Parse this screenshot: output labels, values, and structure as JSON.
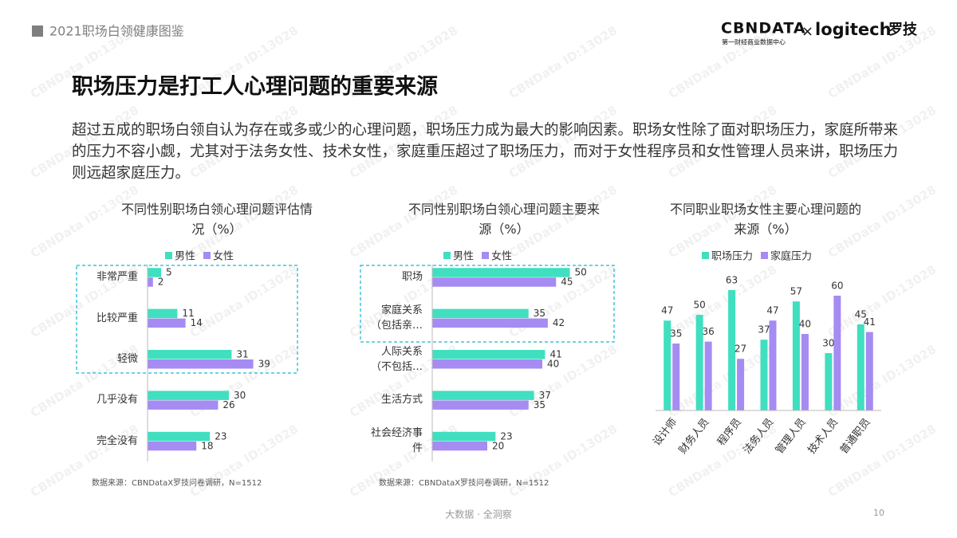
{
  "header": {
    "title": "2021职场白领健康图鉴",
    "logo": "CBNDATA",
    "logo_subtitle": "第一财经商业数据中心",
    "times": "×",
    "partner": "logitech",
    "partner_cn": "罗技"
  },
  "watermark": "CBNData ID:13028",
  "title": "职场压力是打工人心理问题的重要来源",
  "paragraph": "超过五成的职场白领自认为存在或多或少的心理问题，职场压力成为最大的影响因素。职场女性除了面对职场压力，家庭所带来的压力不容小觑，尤其对于法务女性、技术女性，家庭重压超过了职场压力，而对于女性程序员和女性管理人员来讲，职场压力则远超家庭压力。",
  "chart_data": [
    {
      "type": "barh",
      "title": "不同性别职场白领心理问题评估情况（%）",
      "categories": [
        "非常严重",
        "比较严重",
        "轻微",
        "几乎没有",
        "完全没有"
      ],
      "series": [
        {
          "name": "男性",
          "color": "#40dfbf",
          "values": [
            5,
            11,
            31,
            30,
            23
          ]
        },
        {
          "name": "女性",
          "color": "#a58bf2",
          "values": [
            2,
            14,
            39,
            26,
            18
          ]
        }
      ],
      "source": "数据来源：CBNDataX罗技问卷调研，N=1512"
    },
    {
      "type": "barh",
      "title": "不同性别职场白领心理问题主要来源（%）",
      "categories": [
        "职场",
        "家庭关系（包括亲…",
        "人际关系（不包括…",
        "生活方式",
        "社会经济事件"
      ],
      "series": [
        {
          "name": "男性",
          "color": "#40dfbf",
          "values": [
            50,
            35,
            41,
            37,
            23
          ]
        },
        {
          "name": "女性",
          "color": "#a58bf2",
          "values": [
            45,
            42,
            40,
            35,
            20
          ]
        }
      ],
      "source": "数据来源：CBNDataX罗技问卷调研，N=1512"
    },
    {
      "type": "bar",
      "title": "不同职业职场女性主要心理问题的来源（%）",
      "categories": [
        "设计师",
        "财务人员",
        "程序员",
        "法务人员",
        "管理人员",
        "技术人员",
        "普通职员"
      ],
      "series": [
        {
          "name": "职场压力",
          "color": "#40dfbf",
          "values": [
            47,
            50,
            63,
            37,
            57,
            30,
            45
          ]
        },
        {
          "name": "家庭压力",
          "color": "#a58bf2",
          "values": [
            35,
            36,
            27,
            47,
            40,
            60,
            41
          ]
        }
      ]
    }
  ],
  "footer": {
    "slogan": "大数据 · 全洞察",
    "page": "10"
  }
}
